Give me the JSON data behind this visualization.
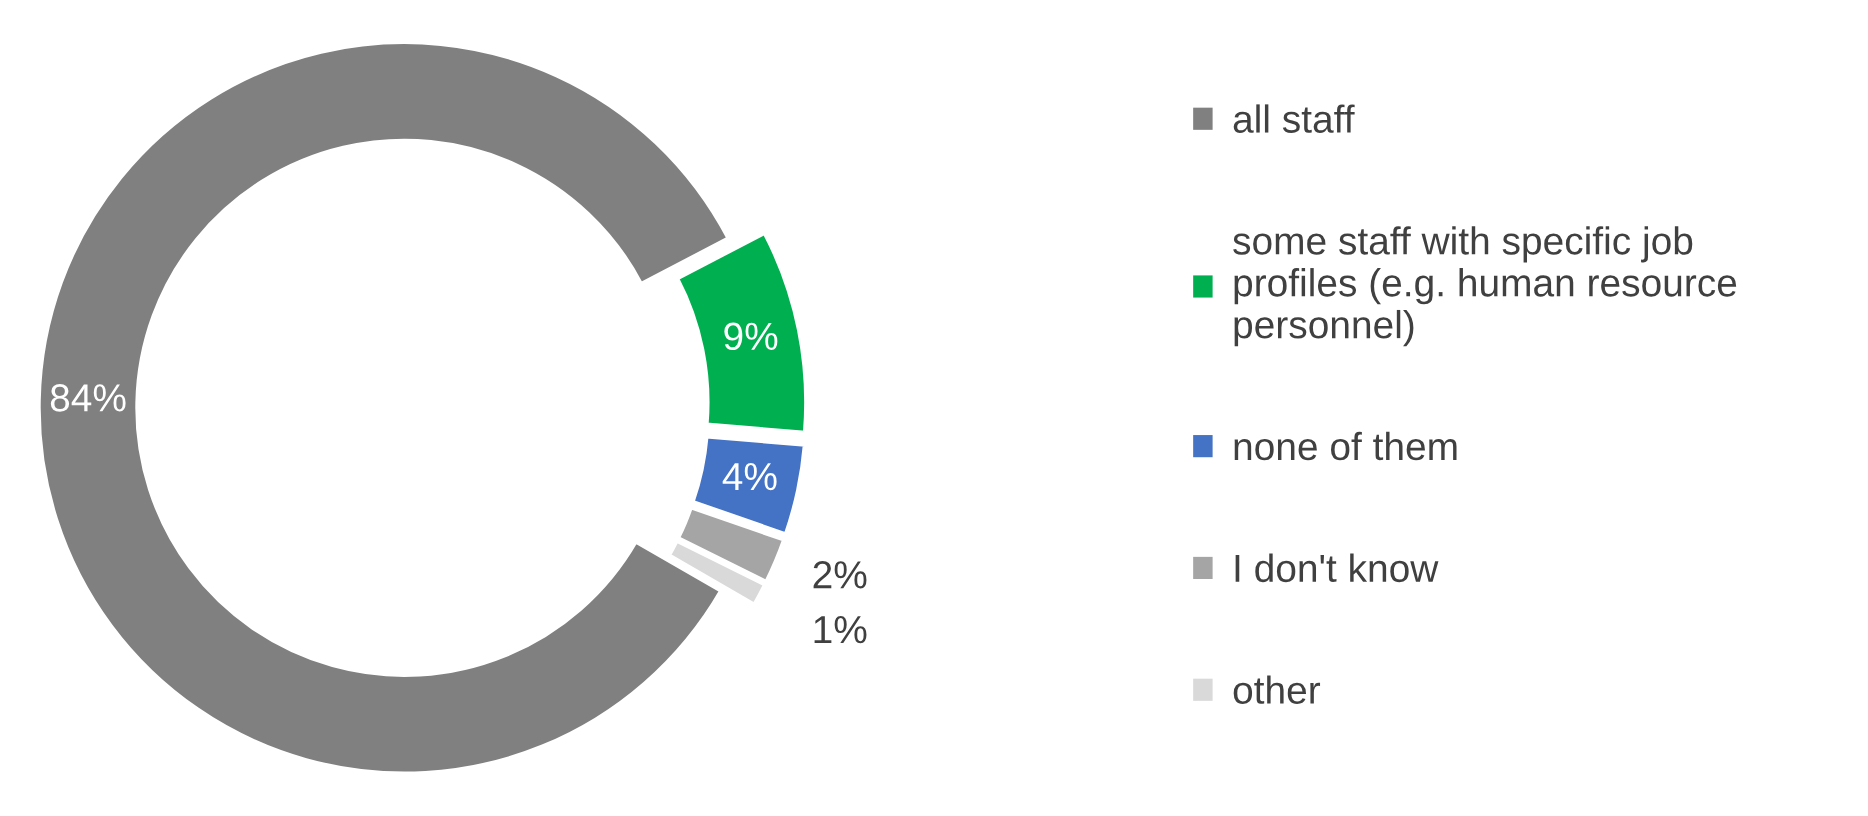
{
  "chart_data": {
    "type": "donut",
    "categories": [
      "all staff",
      "some staff with specific job\nprofiles (e.g. human resource\npersonnel)",
      "none of them",
      "I don't know",
      "other"
    ],
    "values": [
      84,
      9,
      4,
      2,
      1
    ],
    "colors": [
      "#808080",
      "#00b050",
      "#4472c4",
      "#a5a5a5",
      "#d9d9d9"
    ],
    "value_labels": [
      "84%",
      "9%",
      "4%",
      "2%",
      "1%"
    ],
    "legend": "right"
  }
}
